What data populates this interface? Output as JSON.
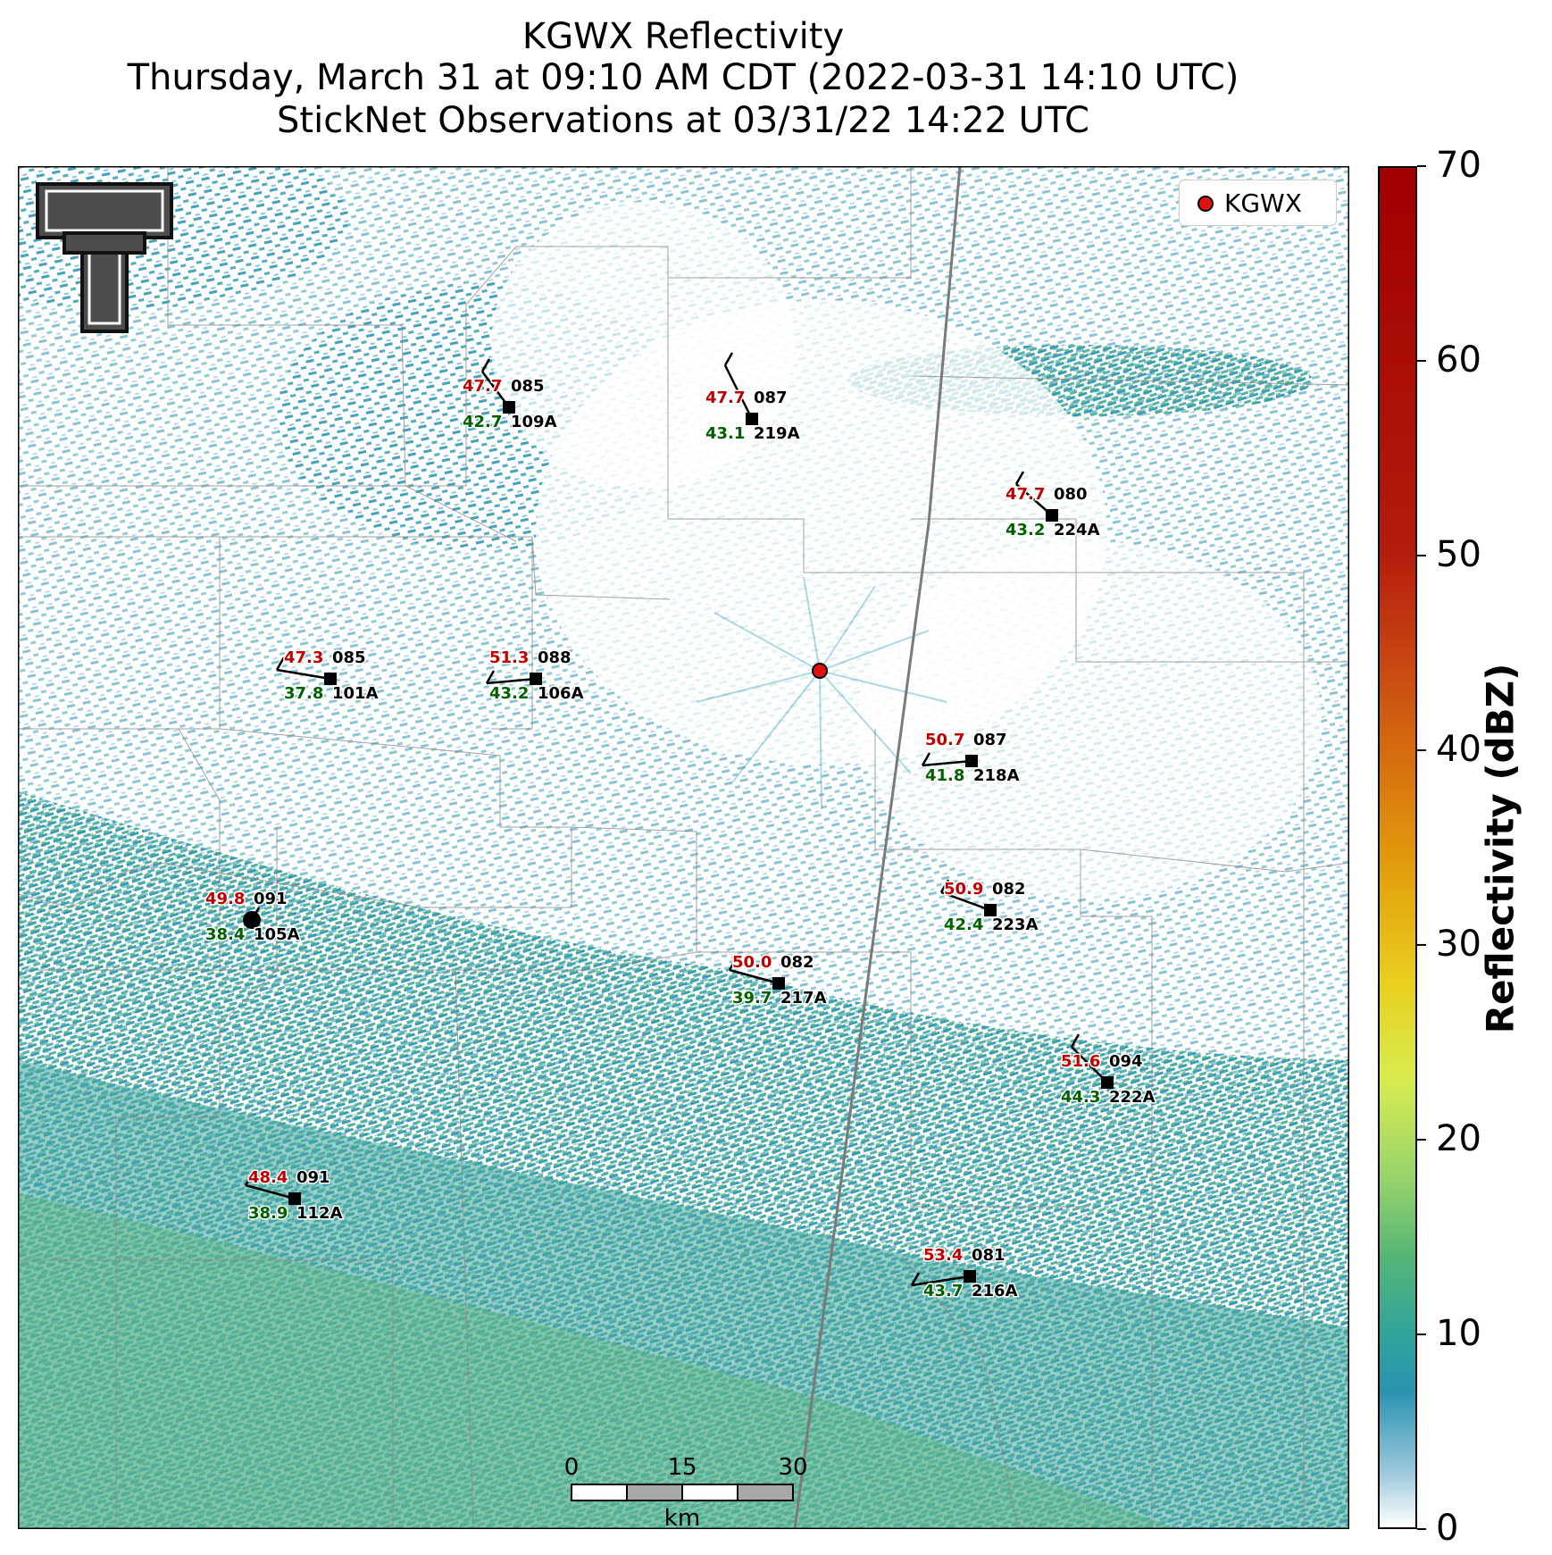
{
  "title": {
    "line1": "KGWX Reflectivity",
    "line2": "Thursday, March 31 at 09:10 AM CDT (2022-03-31 14:10 UTC)",
    "line3": "StickNet Observations at 03/31/22 14:22 UTC"
  },
  "legend": {
    "radar_label": "KGWX",
    "radar_color": "#e01010"
  },
  "colorbar": {
    "label": "Reflectivity (dBZ)",
    "ticks": [
      "0",
      "10",
      "20",
      "30",
      "40",
      "50",
      "60",
      "70"
    ],
    "range": [
      0,
      70
    ]
  },
  "scale_bar": {
    "labels": [
      "0",
      "15",
      "30"
    ],
    "unit": "km"
  },
  "colors": {
    "temperature": "#c00000",
    "dewpoint": "#006000",
    "radar_site": "#e01010"
  },
  "stations": [
    {
      "id": "109A",
      "temp": "47.7",
      "dew": "42.7",
      "value": "085"
    },
    {
      "id": "219A",
      "temp": "47.7",
      "dew": "43.1",
      "value": "087"
    },
    {
      "id": "224A",
      "temp": "47.7",
      "dew": "43.2",
      "value": "080"
    },
    {
      "id": "101A",
      "temp": "47.3",
      "dew": "37.8",
      "value": "085"
    },
    {
      "id": "106A",
      "temp": "51.3",
      "dew": "43.2",
      "value": "088"
    },
    {
      "id": "218A",
      "temp": "50.7",
      "dew": "41.8",
      "value": "087"
    },
    {
      "id": "223A",
      "temp": "50.9",
      "dew": "42.4",
      "value": "082"
    },
    {
      "id": "105A",
      "temp": "49.8",
      "dew": "38.4",
      "value": "091"
    },
    {
      "id": "217A",
      "temp": "50.0",
      "dew": "39.7",
      "value": "082"
    },
    {
      "id": "222A",
      "temp": "51.6",
      "dew": "44.3",
      "value": "094"
    },
    {
      "id": "112A",
      "temp": "48.4",
      "dew": "38.9",
      "value": "091"
    },
    {
      "id": "216A",
      "temp": "53.4",
      "dew": "43.7",
      "value": "081"
    }
  ]
}
